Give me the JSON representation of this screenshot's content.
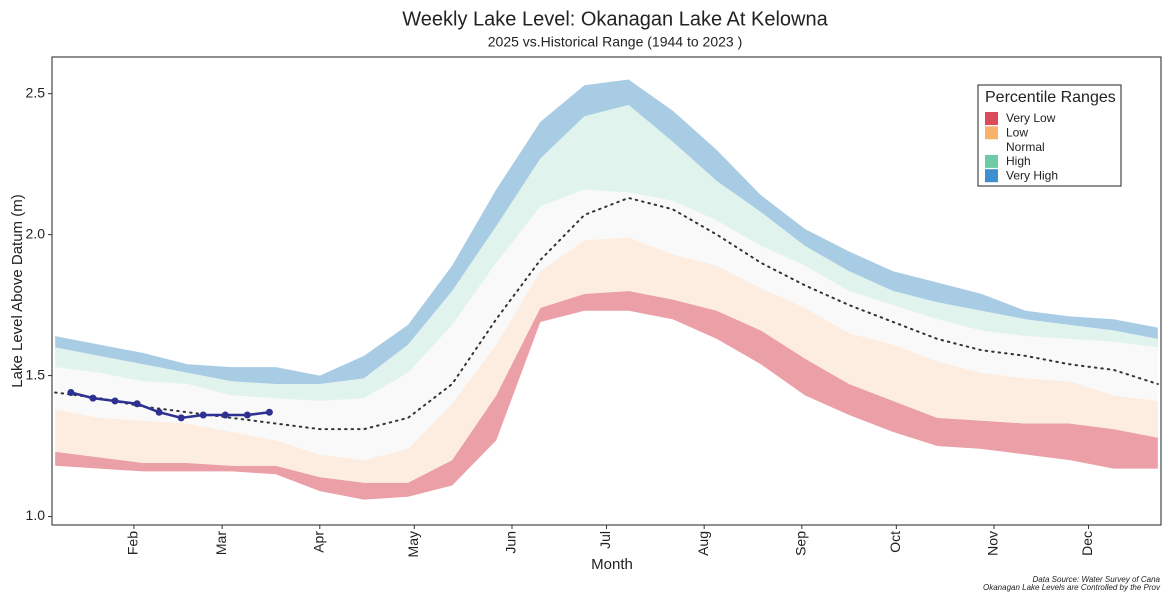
{
  "chart_data": {
    "type": "band",
    "title": "Weekly Lake Level: Okanagan Lake At Kelowna",
    "subtitle": "2025 vs.Historical Range (1944 to 2023 )",
    "x_label": "Month",
    "y_label": "Lake Level Above Datum (m)",
    "legend_title": "Percentile Ranges",
    "legend_position": "top-right",
    "source_lines": [
      "Data Source: Water Survey of Cana",
      "Okanagan Lake Levels are Controlled by the Prov"
    ],
    "xlim": [
      6,
      358
    ],
    "ylim": [
      0.97,
      2.63
    ],
    "xticks": [
      {
        "value": 32,
        "label": "Feb"
      },
      {
        "value": 60,
        "label": "Mar"
      },
      {
        "value": 91,
        "label": "Apr"
      },
      {
        "value": 121,
        "label": "May"
      },
      {
        "value": 152,
        "label": "Jun"
      },
      {
        "value": 182,
        "label": "Jul"
      },
      {
        "value": 213,
        "label": "Aug"
      },
      {
        "value": 244,
        "label": "Sep"
      },
      {
        "value": 274,
        "label": "Oct"
      },
      {
        "value": 305,
        "label": "Nov"
      },
      {
        "value": 335,
        "label": "Dec"
      }
    ],
    "yticks": [
      {
        "value": 1,
        "label": "1.0"
      },
      1.5,
      {
        "value": 2,
        "label": "2.0"
      },
      2.5
    ],
    "x": [
      7,
      21,
      35,
      49,
      63,
      77,
      91,
      105,
      119,
      133,
      147,
      161,
      175,
      189,
      203,
      217,
      231,
      245,
      259,
      273,
      287,
      301,
      315,
      329,
      343,
      357
    ],
    "floor": [
      1.18,
      1.17,
      1.16,
      1.16,
      1.16,
      1.15,
      1.09,
      1.06,
      1.07,
      1.11,
      1.27,
      1.69,
      1.73,
      1.73,
      1.7,
      1.63,
      1.54,
      1.43,
      1.36,
      1.3,
      1.25,
      1.24,
      1.22,
      1.2,
      1.17,
      1.17
    ],
    "series": [
      {
        "name": "Very Low",
        "color": "#dc4b5a",
        "fill": "#eba0a8",
        "values": [
          1.23,
          1.21,
          1.19,
          1.19,
          1.18,
          1.18,
          1.14,
          1.12,
          1.12,
          1.2,
          1.43,
          1.74,
          1.79,
          1.8,
          1.77,
          1.73,
          1.66,
          1.56,
          1.47,
          1.41,
          1.35,
          1.34,
          1.33,
          1.33,
          1.31,
          1.28
        ]
      },
      {
        "name": "Low",
        "color": "#f8b26a",
        "fill": "#fdede0",
        "values": [
          1.38,
          1.35,
          1.34,
          1.33,
          1.3,
          1.27,
          1.22,
          1.2,
          1.24,
          1.4,
          1.61,
          1.87,
          1.98,
          1.99,
          1.93,
          1.89,
          1.81,
          1.74,
          1.65,
          1.61,
          1.55,
          1.51,
          1.49,
          1.48,
          1.43,
          1.41
        ]
      },
      {
        "name": "Normal",
        "color": "#ffffff",
        "fill": "#f9f9f9",
        "values": [
          1.53,
          1.51,
          1.48,
          1.47,
          1.43,
          1.42,
          1.41,
          1.42,
          1.51,
          1.68,
          1.9,
          2.1,
          2.16,
          2.15,
          2.12,
          2.05,
          1.96,
          1.89,
          1.8,
          1.75,
          1.7,
          1.66,
          1.64,
          1.63,
          1.62,
          1.6
        ]
      },
      {
        "name": "High",
        "color": "#6fcaa8",
        "fill": "#e0f3ec",
        "values": [
          1.6,
          1.57,
          1.54,
          1.51,
          1.48,
          1.47,
          1.47,
          1.49,
          1.61,
          1.8,
          2.03,
          2.27,
          2.42,
          2.46,
          2.33,
          2.19,
          2.08,
          1.96,
          1.87,
          1.8,
          1.76,
          1.73,
          1.7,
          1.68,
          1.66,
          1.63
        ]
      },
      {
        "name": "Very High",
        "color": "#3f8fce",
        "fill": "#a9cce5",
        "values": [
          1.64,
          1.61,
          1.58,
          1.54,
          1.53,
          1.53,
          1.5,
          1.57,
          1.68,
          1.89,
          2.16,
          2.4,
          2.53,
          2.55,
          2.44,
          2.3,
          2.14,
          2.02,
          1.94,
          1.87,
          1.83,
          1.79,
          1.73,
          1.71,
          1.7,
          1.67
        ]
      }
    ],
    "median": {
      "color": "#333333",
      "values": [
        1.44,
        1.42,
        1.39,
        1.37,
        1.35,
        1.33,
        1.31,
        1.31,
        1.35,
        1.47,
        1.7,
        1.91,
        2.07,
        2.13,
        2.09,
        2.0,
        1.9,
        1.82,
        1.75,
        1.69,
        1.63,
        1.59,
        1.57,
        1.54,
        1.52,
        1.47
      ]
    },
    "current": {
      "color": "#2e3192",
      "x": [
        12,
        19,
        26,
        33,
        40,
        47,
        54,
        61,
        68,
        75
      ],
      "values": [
        1.44,
        1.42,
        1.41,
        1.4,
        1.37,
        1.35,
        1.36,
        1.36,
        1.36,
        1.37
      ]
    }
  }
}
